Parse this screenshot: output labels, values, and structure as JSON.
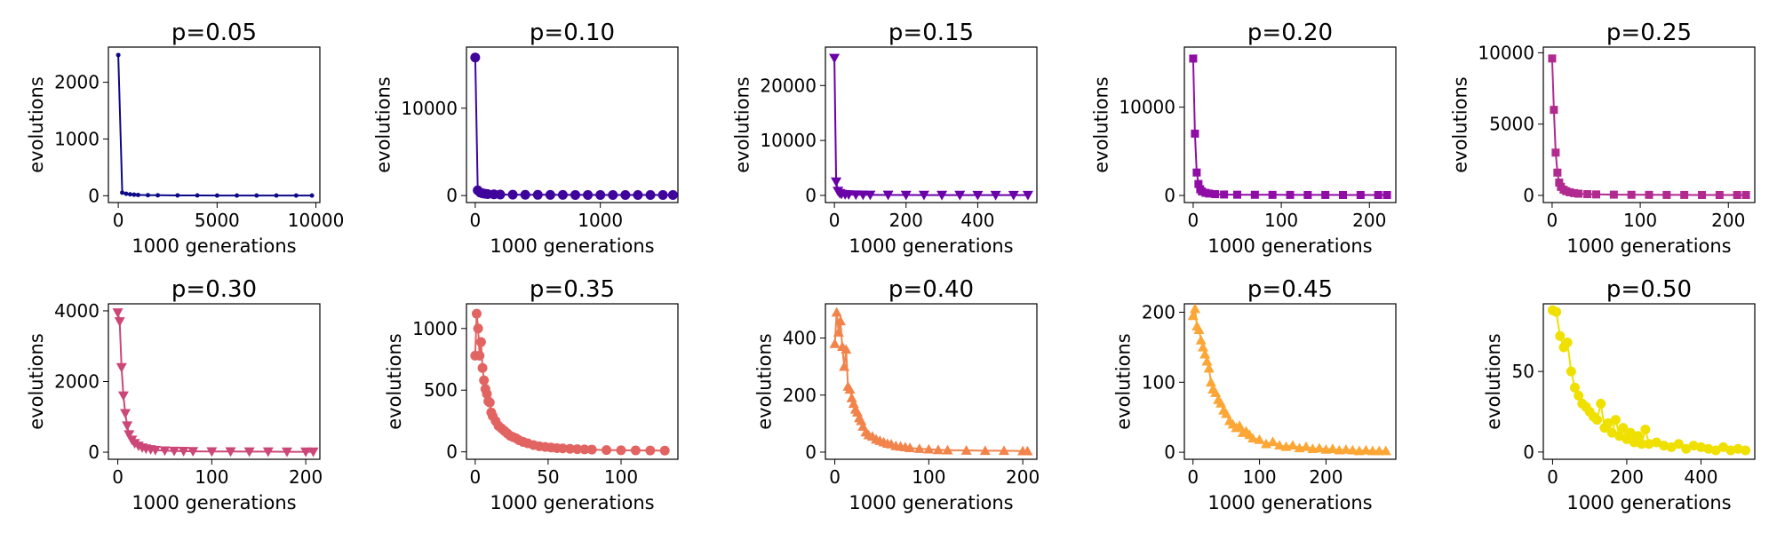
{
  "chart_data": [
    {
      "type": "line",
      "title": "p=0.05",
      "xlabel": "1000 generations",
      "ylabel": "evolutions",
      "xlim": [
        -500,
        10200
      ],
      "ylim": [
        -120,
        2620
      ],
      "xticks": [
        0,
        5000,
        10000
      ],
      "yticks": [
        0,
        1000,
        2000
      ],
      "color": "#0d0887",
      "marker": "point",
      "series": [
        {
          "x": [
            0,
            200,
            400,
            600,
            800,
            1000,
            1500,
            2000,
            3000,
            4000,
            5000,
            6000,
            7000,
            8000,
            9000,
            9800
          ],
          "y": [
            2480,
            55,
            35,
            25,
            18,
            14,
            10,
            8,
            6,
            5,
            4,
            4,
            3,
            3,
            3,
            3
          ]
        }
      ]
    },
    {
      "type": "line",
      "title": "p=0.10",
      "xlabel": "1000 generations",
      "ylabel": "evolutions",
      "xlim": [
        -70,
        1620
      ],
      "ylim": [
        -800,
        17000
      ],
      "xticks": [
        0,
        1000
      ],
      "yticks": [
        0,
        10000
      ],
      "color": "#3e049c",
      "marker": "circle",
      "series": [
        {
          "x": [
            0,
            20,
            40,
            60,
            80,
            100,
            150,
            200,
            300,
            400,
            500,
            600,
            700,
            800,
            900,
            1000,
            1100,
            1200,
            1300,
            1400,
            1500,
            1580
          ],
          "y": [
            15800,
            600,
            350,
            250,
            200,
            170,
            140,
            120,
            100,
            90,
            85,
            80,
            75,
            70,
            70,
            65,
            65,
            60,
            60,
            60,
            60,
            60
          ]
        }
      ]
    },
    {
      "type": "line",
      "title": "p=0.15",
      "xlabel": "1000 generations",
      "ylabel": "evolutions",
      "xlim": [
        -25,
        565
      ],
      "ylim": [
        -1300,
        27000
      ],
      "xticks": [
        0,
        200,
        400
      ],
      "yticks": [
        0,
        10000,
        20000
      ],
      "color": "#6a00a8",
      "marker": "triangle-down",
      "series": [
        {
          "x": [
            0,
            5,
            10,
            15,
            20,
            30,
            40,
            60,
            80,
            100,
            150,
            200,
            250,
            300,
            350,
            400,
            450,
            500,
            540
          ],
          "y": [
            25000,
            2500,
            800,
            400,
            250,
            180,
            150,
            120,
            100,
            90,
            80,
            70,
            65,
            60,
            60,
            55,
            55,
            55,
            55
          ]
        }
      ]
    },
    {
      "type": "line",
      "title": "p=0.20",
      "xlabel": "1000 generations",
      "ylabel": "evolutions",
      "xlim": [
        -10,
        230
      ],
      "ylim": [
        -800,
        16800
      ],
      "xticks": [
        0,
        100,
        200
      ],
      "yticks": [
        0,
        10000
      ],
      "color": "#8f0da4",
      "marker": "square",
      "series": [
        {
          "x": [
            0,
            2,
            4,
            6,
            8,
            10,
            14,
            18,
            25,
            35,
            50,
            70,
            90,
            110,
            130,
            150,
            170,
            190,
            210,
            220
          ],
          "y": [
            15500,
            7000,
            2600,
            1300,
            700,
            450,
            300,
            220,
            150,
            110,
            90,
            80,
            70,
            65,
            60,
            60,
            55,
            55,
            55,
            55
          ]
        }
      ]
    },
    {
      "type": "line",
      "title": "p=0.25",
      "xlabel": "1000 generations",
      "ylabel": "evolutions",
      "xlim": [
        -10,
        230
      ],
      "ylim": [
        -500,
        10400
      ],
      "xticks": [
        0,
        100,
        200
      ],
      "yticks": [
        0,
        5000,
        10000
      ],
      "color": "#b12a90",
      "marker": "square",
      "series": [
        {
          "x": [
            0,
            2,
            4,
            6,
            8,
            10,
            13,
            16,
            20,
            25,
            30,
            40,
            50,
            70,
            90,
            110,
            130,
            150,
            170,
            190,
            210,
            220
          ],
          "y": [
            9600,
            6000,
            3000,
            1600,
            900,
            600,
            400,
            300,
            220,
            160,
            120,
            90,
            70,
            55,
            45,
            40,
            35,
            35,
            30,
            30,
            30,
            30
          ]
        }
      ]
    },
    {
      "type": "line",
      "title": "p=0.30",
      "xlabel": "1000 generations",
      "ylabel": "evolutions",
      "xlim": [
        -10,
        215
      ],
      "ylim": [
        -200,
        4200
      ],
      "xticks": [
        0,
        100,
        200
      ],
      "yticks": [
        0,
        2000,
        4000
      ],
      "color": "#cc4778",
      "marker": "triangle-down",
      "series": [
        {
          "x": [
            0,
            2,
            4,
            6,
            8,
            10,
            12,
            15,
            18,
            22,
            26,
            30,
            35,
            40,
            50,
            60,
            70,
            80,
            100,
            120,
            140,
            160,
            180,
            200,
            208
          ],
          "y": [
            3950,
            3700,
            2400,
            1600,
            1100,
            750,
            500,
            350,
            250,
            180,
            130,
            100,
            80,
            60,
            45,
            35,
            30,
            25,
            20,
            18,
            15,
            15,
            12,
            12,
            12
          ]
        }
      ]
    },
    {
      "type": "line",
      "title": "p=0.35",
      "xlabel": "1000 generations",
      "ylabel": "evolutions",
      "xlim": [
        -6,
        139
      ],
      "ylim": [
        -60,
        1200
      ],
      "xticks": [
        0,
        50,
        100
      ],
      "yticks": [
        0,
        500,
        1000
      ],
      "color": "#e16462",
      "marker": "circle",
      "series": [
        {
          "x": [
            0,
            1,
            2,
            3,
            4,
            5,
            6,
            7,
            8,
            9,
            10,
            11,
            12,
            14,
            16,
            18,
            20,
            22,
            24,
            26,
            28,
            30,
            33,
            36,
            40,
            44,
            48,
            52,
            56,
            60,
            65,
            70,
            75,
            80,
            90,
            100,
            110,
            120,
            130
          ],
          "y": [
            780,
            1120,
            1000,
            780,
            890,
            680,
            580,
            510,
            470,
            410,
            400,
            320,
            290,
            250,
            210,
            190,
            170,
            150,
            130,
            120,
            110,
            95,
            80,
            70,
            55,
            45,
            40,
            35,
            30,
            28,
            25,
            22,
            20,
            18,
            15,
            13,
            12,
            11,
            10
          ]
        }
      ]
    },
    {
      "type": "line",
      "title": "p=0.40",
      "xlabel": "1000 generations",
      "ylabel": "evolutions",
      "xlim": [
        -10,
        215
      ],
      "ylim": [
        -25,
        520
      ],
      "xticks": [
        0,
        100,
        200
      ],
      "yticks": [
        0,
        200,
        400
      ],
      "color": "#f2844b",
      "marker": "triangle-up",
      "series": [
        {
          "x": [
            0,
            2,
            4,
            6,
            8,
            10,
            12,
            14,
            16,
            18,
            20,
            22,
            24,
            26,
            28,
            30,
            33,
            36,
            40,
            44,
            48,
            52,
            56,
            60,
            65,
            70,
            75,
            80,
            90,
            100,
            110,
            120,
            140,
            160,
            180,
            200,
            205
          ],
          "y": [
            380,
            490,
            420,
            460,
            370,
            300,
            360,
            230,
            220,
            190,
            170,
            150,
            140,
            120,
            110,
            90,
            70,
            60,
            55,
            45,
            40,
            35,
            30,
            28,
            22,
            20,
            18,
            15,
            12,
            10,
            8,
            7,
            6,
            5,
            5,
            4,
            4
          ]
        }
      ]
    },
    {
      "type": "line",
      "title": "p=0.45",
      "xlabel": "1000 generations",
      "ylabel": "evolutions",
      "xlim": [
        -13,
        305
      ],
      "ylim": [
        -10,
        212
      ],
      "xticks": [
        0,
        100,
        200
      ],
      "yticks": [
        0,
        100,
        200
      ],
      "color": "#fca636",
      "marker": "triangle-up",
      "series": [
        {
          "x": [
            0,
            3,
            6,
            9,
            12,
            15,
            18,
            21,
            24,
            27,
            30,
            34,
            38,
            42,
            46,
            50,
            55,
            60,
            65,
            70,
            75,
            80,
            85,
            90,
            100,
            110,
            120,
            130,
            140,
            150,
            160,
            170,
            180,
            190,
            200,
            210,
            220,
            230,
            240,
            250,
            260,
            270,
            280,
            290
          ],
          "y": [
            195,
            205,
            180,
            175,
            160,
            150,
            140,
            130,
            120,
            100,
            90,
            85,
            75,
            70,
            60,
            55,
            45,
            40,
            35,
            38,
            28,
            30,
            25,
            20,
            18,
            12,
            15,
            10,
            8,
            10,
            6,
            8,
            5,
            6,
            4,
            5,
            3,
            4,
            3,
            2,
            3,
            2,
            2,
            2
          ]
        }
      ]
    },
    {
      "type": "line",
      "title": "p=0.50",
      "xlabel": "1000 generations",
      "ylabel": "evolutions",
      "xlim": [
        -25,
        545
      ],
      "ylim": [
        -4.5,
        92
      ],
      "xticks": [
        0,
        200,
        400
      ],
      "yticks": [
        0,
        50
      ],
      "color": "#f0e000",
      "marker": "circle",
      "series": [
        {
          "x": [
            0,
            10,
            20,
            30,
            40,
            50,
            60,
            70,
            80,
            90,
            100,
            110,
            120,
            130,
            140,
            150,
            160,
            170,
            180,
            190,
            200,
            210,
            220,
            230,
            240,
            250,
            260,
            280,
            300,
            320,
            340,
            360,
            380,
            400,
            420,
            440,
            460,
            480,
            500,
            520
          ],
          "y": [
            88,
            87,
            72,
            65,
            68,
            50,
            40,
            35,
            30,
            28,
            25,
            22,
            20,
            30,
            15,
            18,
            12,
            20,
            10,
            15,
            8,
            12,
            6,
            10,
            5,
            14,
            5,
            6,
            4,
            3,
            5,
            2,
            4,
            3,
            2,
            1,
            3,
            1,
            2,
            1
          ]
        }
      ]
    }
  ]
}
